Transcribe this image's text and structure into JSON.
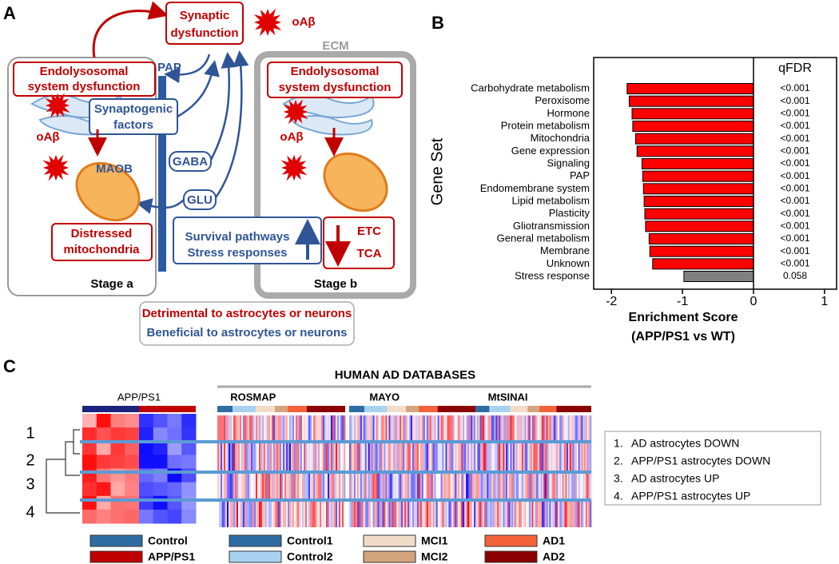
{
  "panel_a": {
    "label": "A",
    "synaptic_dysfunction": [
      "Synaptic",
      "dysfunction"
    ],
    "oabeta": "oAβ",
    "ecm": "ECM",
    "pap": "PAP",
    "endolysosomal": [
      "Endolysosomal",
      "system dysfunction"
    ],
    "synaptogenic_factors": [
      "Synaptogenic",
      "factors"
    ],
    "maob": "MAOB",
    "gaba": "GABA",
    "glu": "GLU",
    "distressed_mitochondria": [
      "Distressed",
      "mitochondria"
    ],
    "survival": [
      "Survival pathways",
      "Stress responses"
    ],
    "etc_tca": [
      "ETC",
      "TCA"
    ],
    "stage_a": "Stage a",
    "stage_b": "Stage b",
    "legend": {
      "detrimental": "Detrimental to astrocytes or neurons",
      "beneficial": "Beneficial to astrocytes or neurons"
    }
  },
  "chart_data": {
    "type": "barh",
    "label": "B",
    "categories": [
      "Carbohydrate metabolism",
      "Peroxisome",
      "Hormone",
      "Protein metabolism",
      "Mitochondria",
      "Gene expression",
      "Signaling",
      "PAP",
      "Endomembrane system",
      "Lipid metabolism",
      "Plasticity",
      "Gliotransmission",
      "General metabolism",
      "Membrane",
      "Unknown",
      "Stress response"
    ],
    "values": [
      -1.78,
      -1.75,
      -1.71,
      -1.7,
      -1.66,
      -1.64,
      -1.57,
      -1.56,
      -1.55,
      -1.54,
      -1.53,
      -1.52,
      -1.47,
      -1.46,
      -1.42,
      -0.98
    ],
    "colors": [
      "#ff0000",
      "#ff0000",
      "#ff0000",
      "#ff0000",
      "#ff0000",
      "#ff0000",
      "#ff0000",
      "#ff0000",
      "#ff0000",
      "#ff0000",
      "#ff0000",
      "#ff0000",
      "#ff0000",
      "#ff0000",
      "#ff0000",
      "#808080"
    ],
    "qfdr_title": "qFDR",
    "qfdr": [
      "<0.001",
      "<0.001",
      "<0.001",
      "<0.001",
      "<0.001",
      "<0.001",
      "<0.001",
      "<0.001",
      "<0.001",
      "<0.001",
      "<0.001",
      "<0.001",
      "<0.001",
      "<0.001",
      "<0.001",
      "0.058"
    ],
    "xlim": [
      -2.25,
      1.17
    ],
    "xticks": [
      -2,
      -1,
      0,
      1
    ],
    "xlabel": [
      "Enrichment Score",
      "(APP/PS1 vs WT)"
    ],
    "ylabel": "Gene Set"
  },
  "panel_c": {
    "label": "C",
    "title": "HUMAN AD DATABASES",
    "heatmaps": [
      "APP/PS1",
      "ROSMAP",
      "MAYO",
      "MtSINAI"
    ],
    "row_labels": [
      "1",
      "2",
      "3",
      "4"
    ],
    "modules": [
      {
        "number": "1.",
        "text": "AD astrocytes DOWN"
      },
      {
        "number": "2.",
        "text": "APP/PS1 astrocytes DOWN"
      },
      {
        "number": "3.",
        "text": "AD astrocytes UP"
      },
      {
        "number": "4.",
        "text": "APP/PS1 astrocytes UP"
      }
    ],
    "legend": [
      [
        {
          "label": "Control",
          "color": "#2e6da4"
        },
        {
          "label": "APP/PS1",
          "color": "#c00000"
        }
      ],
      [
        {
          "label": "Control1",
          "color": "#2e6da4"
        },
        {
          "label": "Control2",
          "color": "#a9d2f0"
        }
      ],
      [
        {
          "label": "MCI1",
          "color": "#f2dcc8"
        },
        {
          "label": "MCI2",
          "color": "#d4a47c"
        }
      ],
      [
        {
          "label": "AD1",
          "color": "#f4623a"
        },
        {
          "label": "AD2",
          "color": "#8b0000"
        }
      ]
    ]
  }
}
